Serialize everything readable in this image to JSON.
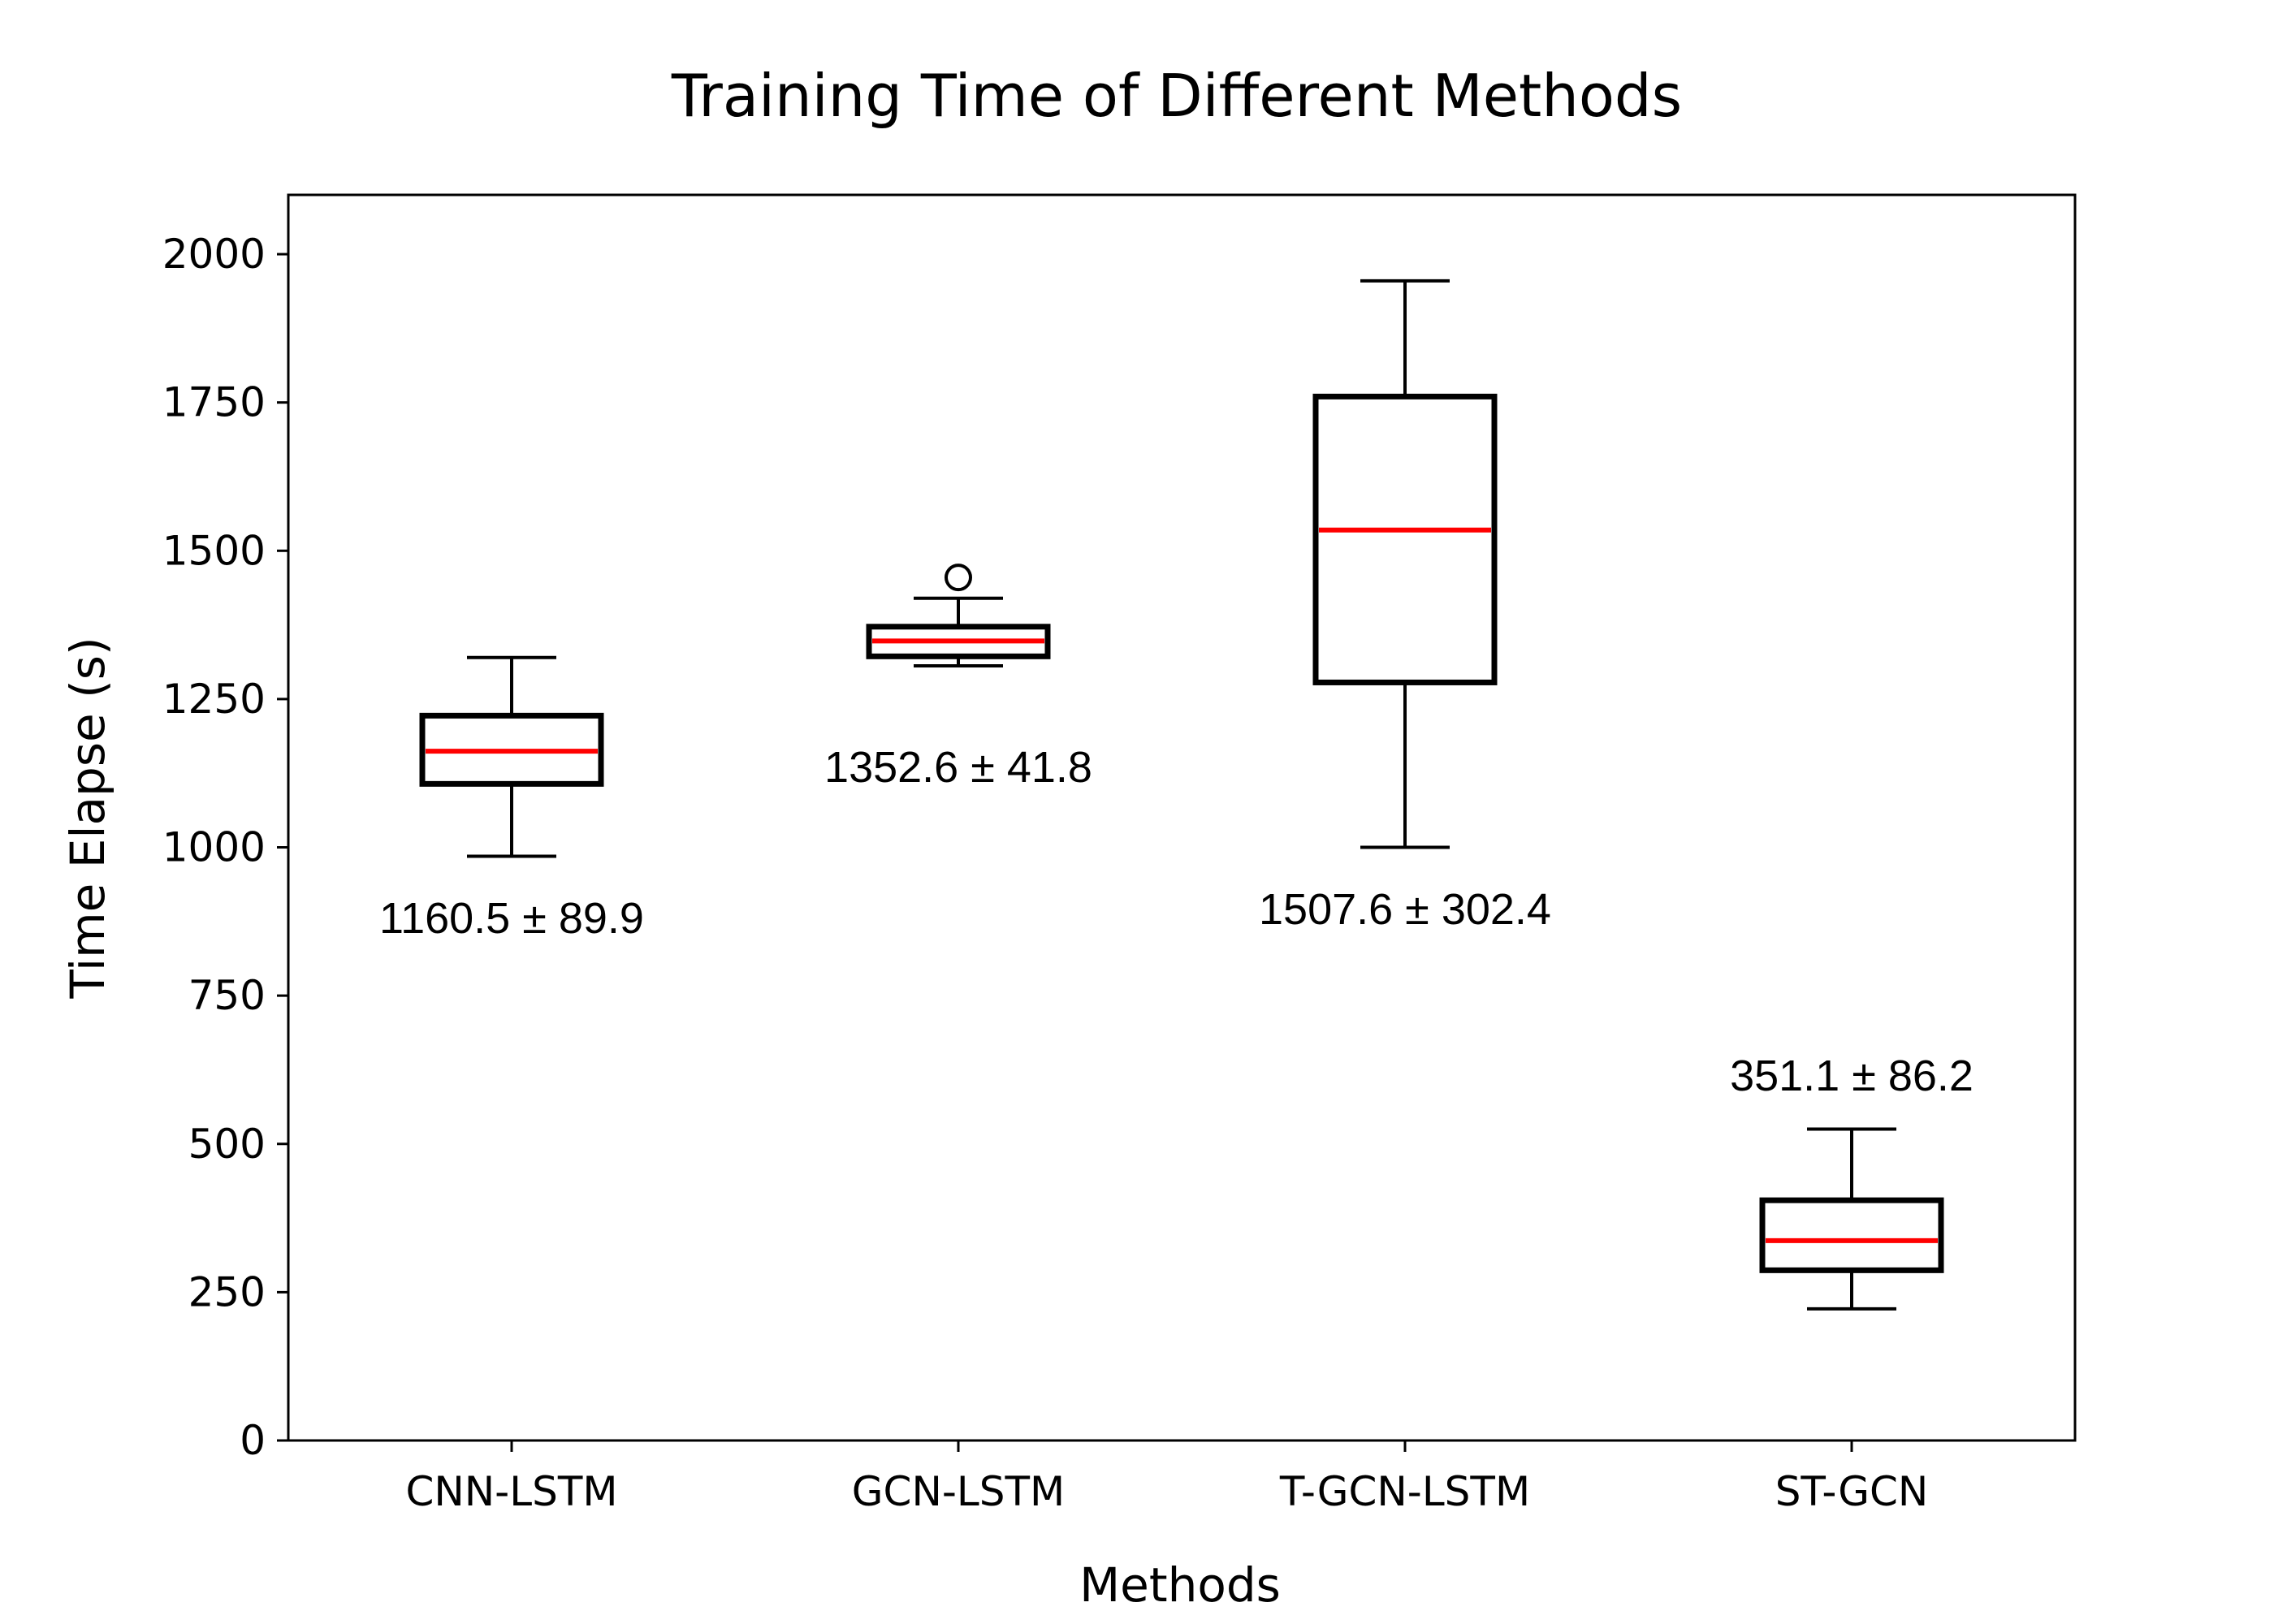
{
  "chart_data": {
    "type": "box",
    "title": "Training Time of Different Methods",
    "xlabel": "Methods",
    "ylabel": "Time Elapse (s)",
    "ylim": [
      0,
      2100
    ],
    "yticks": [
      0,
      250,
      500,
      750,
      1000,
      1250,
      1500,
      1750,
      2000
    ],
    "categories": [
      "CNN-LSTM",
      "GCN-LSTM",
      "T-GCN-LSTM",
      "ST-GCN"
    ],
    "boxes": [
      {
        "whisker_low": 985,
        "q1": 1107,
        "median": 1162,
        "q3": 1222,
        "whisker_high": 1320,
        "outliers": []
      },
      {
        "whisker_low": 1306,
        "q1": 1322,
        "median": 1348,
        "q3": 1372,
        "whisker_high": 1420,
        "outliers": [
          1455
        ]
      },
      {
        "whisker_low": 1000,
        "q1": 1278,
        "median": 1535,
        "q3": 1760,
        "whisker_high": 1955,
        "outliers": []
      },
      {
        "whisker_low": 222,
        "q1": 287,
        "median": 337,
        "q3": 405,
        "whisker_high": 525,
        "outliers": []
      }
    ],
    "annotations": [
      {
        "category": "CNN-LSTM",
        "text": "1160.5 ± 89.9",
        "y": 880
      },
      {
        "category": "GCN-LSTM",
        "text": "1352.6 ± 41.8",
        "y": 1135
      },
      {
        "category": "T-GCN-LSTM",
        "text": "1507.6 ± 302.4",
        "y": 895
      },
      {
        "category": "ST-GCN",
        "text": "351.1 ± 86.2",
        "y": 615
      }
    ],
    "box_color": "#000000",
    "median_color": "#ff0000",
    "grid": false,
    "legend": "none"
  }
}
